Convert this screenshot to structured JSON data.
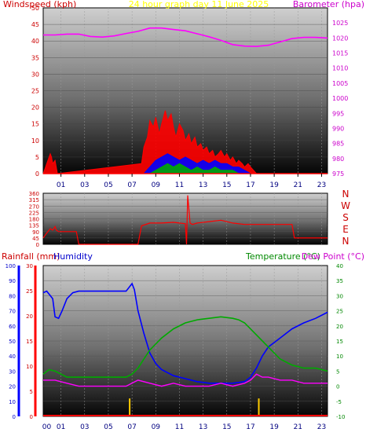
{
  "chart_data": [
    {
      "type": "line",
      "title": "24 hour graph day  11 June 2025",
      "left_axis_label": "Windspeed (kph)",
      "right_axis_label": "Barometer (hpa)",
      "x_ticks": [
        "01",
        "03",
        "05",
        "07",
        "09",
        "11",
        "13",
        "15",
        "17",
        "19",
        "21",
        "23"
      ],
      "x_range": [
        0,
        24
      ],
      "y_range": [
        0,
        50
      ],
      "y_ticks": [
        0,
        5,
        10,
        15,
        20,
        25,
        30,
        35,
        40,
        45,
        50
      ],
      "y2_range": [
        975,
        1030
      ],
      "y2_ticks": [
        975,
        980,
        985,
        990,
        995,
        1000,
        1005,
        1010,
        1015,
        1020,
        1025
      ],
      "colors": {
        "gust": "#ff0000",
        "avg": "#0000ff",
        "low": "#00aa00",
        "baro": "#ff00ff",
        "frame": "#000000"
      },
      "series": [
        {
          "name": "gust",
          "axis": "left",
          "x": [
            0,
            0.6,
            0.7,
            0.8,
            1.0,
            1.2,
            8.3,
            8.5,
            8.8,
            9.0,
            9.3,
            9.5,
            9.8,
            10.0,
            10.3,
            10.5,
            10.8,
            11.0,
            11.2,
            11.5,
            11.8,
            12.0,
            12.3,
            12.5,
            12.8,
            13.0,
            13.3,
            13.5,
            13.8,
            14.0,
            14.3,
            14.5,
            14.8,
            15.0,
            15.3,
            15.5,
            15.8,
            16.0,
            16.3,
            16.5,
            16.8,
            17.0,
            17.3,
            17.5,
            18.0,
            24
          ],
          "y": [
            0,
            6,
            5,
            3,
            4,
            0,
            3,
            8,
            11,
            16,
            14,
            17,
            12,
            15,
            19,
            16,
            18,
            14,
            11,
            15,
            13,
            10,
            12,
            9,
            11,
            8,
            9,
            7,
            8,
            6,
            7,
            5,
            6,
            7,
            5,
            6,
            4,
            5,
            3,
            4,
            3,
            2,
            3,
            2,
            0,
            0
          ]
        },
        {
          "name": "avg",
          "axis": "left",
          "x": [
            0,
            8.5,
            9.0,
            9.5,
            10.0,
            10.5,
            11.0,
            11.5,
            12.0,
            12.5,
            13.0,
            13.5,
            14.0,
            14.5,
            15.0,
            15.5,
            16.0,
            16.5,
            17.0,
            17.5,
            24
          ],
          "y": [
            0,
            0,
            2,
            4,
            5,
            6,
            5,
            4,
            5,
            4,
            3,
            4,
            3,
            4,
            3,
            3,
            2,
            2,
            1,
            0,
            0
          ]
        },
        {
          "name": "low",
          "axis": "left",
          "x": [
            0,
            9.0,
            9.5,
            10.0,
            10.5,
            11.0,
            11.5,
            12.0,
            12.5,
            13.0,
            13.5,
            14.0,
            14.5,
            15.0,
            15.5,
            16.0,
            16.5,
            17.0,
            24
          ],
          "y": [
            0,
            0,
            1,
            2,
            3,
            2,
            3,
            2,
            1,
            2,
            1,
            1,
            2,
            1,
            1,
            1,
            0,
            0,
            0
          ]
        },
        {
          "name": "barometer",
          "axis": "right",
          "x": [
            0,
            1,
            2,
            3,
            4,
            5,
            6,
            7,
            8,
            9,
            10,
            11,
            12,
            13,
            14,
            15,
            16,
            17,
            18,
            19,
            20,
            21,
            22,
            23,
            24
          ],
          "y": [
            1021,
            1021,
            1021.3,
            1021.3,
            1020.5,
            1020.3,
            1020.7,
            1021.5,
            1022.2,
            1023.3,
            1023.3,
            1022.8,
            1022.4,
            1021.4,
            1020.4,
            1019.2,
            1017.8,
            1017.3,
            1017.2,
            1017.6,
            1018.7,
            1019.8,
            1020.2,
            1020.2,
            1020
          ]
        }
      ]
    },
    {
      "type": "line",
      "title": "",
      "right_labels": [
        "N",
        "W",
        "S",
        "E",
        "N"
      ],
      "x_range": [
        0,
        24
      ],
      "y_range": [
        0,
        360
      ],
      "y_ticks": [
        0,
        45,
        90,
        135,
        180,
        225,
        270,
        315,
        360
      ],
      "colors": {
        "dir": "#ff0000",
        "avg": "#cc0000"
      },
      "series": [
        {
          "name": "direction",
          "x": [
            0,
            0.3,
            0.6,
            0.8,
            1.0,
            1.1,
            1.3,
            1.8,
            2.8,
            3.0,
            8.0,
            8.3,
            9.0,
            10.0,
            11.0,
            11.5,
            12.0,
            12.1,
            12.2,
            12.4,
            12.6,
            13.0,
            14.0,
            15.0,
            16.0,
            17.0,
            18.0,
            21.0,
            21.2,
            24
          ],
          "y": [
            45,
            80,
            110,
            100,
            125,
            100,
            90,
            90,
            90,
            0,
            0,
            130,
            150,
            150,
            155,
            150,
            145,
            -20,
            345,
            150,
            140,
            150,
            160,
            170,
            150,
            140,
            140,
            140,
            45,
            45
          ]
        }
      ]
    },
    {
      "type": "line",
      "title": "",
      "labels": {
        "rain": "Rainfall (mm)",
        "humidity": "Humidity",
        "temp": "Temperature (°C)",
        "dew": "Dew Point (°C)"
      },
      "x_ticks": [
        "00",
        "01",
        "03",
        "05",
        "07",
        "09",
        "11",
        "13",
        "15",
        "17",
        "19",
        "21",
        "23"
      ],
      "x_range": [
        0,
        24
      ],
      "hum_ticks": [
        0,
        10,
        20,
        30,
        40,
        50,
        60,
        70,
        80,
        90,
        100
      ],
      "hum_range": [
        0,
        100
      ],
      "rain_ticks": [
        0,
        5,
        10,
        15,
        20,
        25,
        30
      ],
      "rain_range": [
        0,
        30
      ],
      "temp_ticks": [
        -10,
        -5,
        0,
        5,
        10,
        15,
        20,
        25,
        30,
        35,
        40
      ],
      "temp_range": [
        -10,
        40
      ],
      "colors": {
        "humidity": "#0000ff",
        "temp": "#00aa00",
        "dew": "#ff00ff",
        "rain": "#ff0000",
        "rainbar": "#ffcc00"
      },
      "series": [
        {
          "name": "humidity",
          "x": [
            0,
            0.3,
            0.8,
            1.0,
            1.3,
            1.6,
            2.0,
            2.5,
            3.0,
            4.0,
            5.0,
            6.0,
            7.0,
            7.5,
            7.7,
            8.0,
            8.5,
            9.0,
            9.5,
            10.0,
            11.0,
            12.0,
            13.0,
            14.0,
            15.0,
            16.0,
            17.0,
            17.5,
            18.0,
            18.5,
            19.0,
            20.0,
            21.0,
            22.0,
            23.0,
            24.0
          ],
          "y": [
            82,
            83,
            78,
            66,
            65,
            70,
            78,
            82,
            83,
            83,
            83,
            83,
            83,
            88,
            84,
            70,
            55,
            42,
            35,
            31,
            27,
            25,
            23,
            22,
            22,
            22,
            23,
            26,
            32,
            40,
            46,
            52,
            58,
            62,
            65,
            69
          ]
        },
        {
          "name": "temperature",
          "x": [
            0,
            0.5,
            1.0,
            1.5,
            2.0,
            3.0,
            4.0,
            5.0,
            6.0,
            7.0,
            7.5,
            8.0,
            8.5,
            9.0,
            10.0,
            11.0,
            12.0,
            13.0,
            14.0,
            15.0,
            16.0,
            16.5,
            17.0,
            18.0,
            19.0,
            20.0,
            21.0,
            22.0,
            23.0,
            24.0
          ],
          "y": [
            4,
            5.5,
            5,
            4,
            3,
            3,
            3,
            3,
            3,
            3,
            4,
            6,
            9,
            12,
            16,
            19,
            21,
            22,
            22.5,
            23,
            22.5,
            22,
            21,
            17,
            13,
            9,
            7,
            6,
            6,
            5
          ]
        },
        {
          "name": "dewpoint",
          "x": [
            0,
            1,
            2,
            3,
            4,
            5,
            6,
            7,
            7.5,
            8,
            9,
            10,
            11,
            12,
            13,
            14,
            15,
            16,
            17,
            17.5,
            18,
            18.5,
            19,
            20,
            21,
            22,
            23,
            24
          ],
          "y": [
            2,
            2,
            1,
            0,
            0,
            0,
            0,
            0,
            1,
            2,
            1,
            0,
            1,
            0,
            0,
            0,
            1,
            0,
            1,
            2,
            4,
            3,
            3,
            2,
            2,
            1,
            1,
            1
          ]
        },
        {
          "name": "rain_bars",
          "x": [
            7.3,
            18.2
          ],
          "y": [
            2,
            2
          ]
        }
      ]
    }
  ]
}
